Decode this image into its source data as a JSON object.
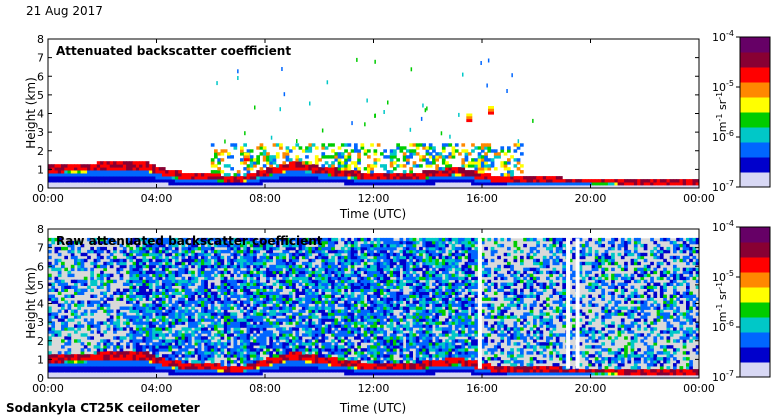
{
  "header": {
    "date": "21 Aug 2017"
  },
  "footer": {
    "instrument": "Sodankyla CT25K ceilometer"
  },
  "colors": {
    "cmap": [
      "#d8d8f4",
      "#0000cc",
      "#0066ff",
      "#00c8c8",
      "#00cc00",
      "#ffff00",
      "#ff8800",
      "#ff0000",
      "#880033",
      "#660066"
    ],
    "raw_background": "#d9d9d9"
  },
  "chart_data": [
    {
      "type": "heatmap",
      "title": "Attenuated backscatter coefficient",
      "xlabel": "Time (UTC)",
      "ylabel": "Height (km)",
      "xticks": [
        "00:00",
        "04:00",
        "08:00",
        "12:00",
        "16:00",
        "20:00",
        "00:00"
      ],
      "xlim": [
        0,
        24
      ],
      "ylim": [
        0,
        8
      ],
      "yticks": [
        0,
        1,
        2,
        3,
        4,
        5,
        6,
        7,
        8
      ],
      "colorbar": {
        "scale": "log",
        "range": [
          1e-07,
          0.0001
        ],
        "tick_labels": [
          "10-4",
          "10-5",
          "10-6",
          "10-7"
        ],
        "label": "m-1 sr-1"
      },
      "features": {
        "boundary_layer_top_km": [
          [
            0,
            0.9
          ],
          [
            2,
            1.05
          ],
          [
            3.5,
            1.1
          ],
          [
            4.5,
            0.6
          ],
          [
            7,
            0.3
          ],
          [
            9,
            1.1
          ],
          [
            11,
            0.6
          ],
          [
            13,
            0.4
          ],
          [
            15,
            0.8
          ],
          [
            16.5,
            0.3
          ],
          [
            20,
            0.2
          ],
          [
            24,
            0.15
          ]
        ],
        "elevated_layers": [
          {
            "time_h": 15.5,
            "height_km": 3.8
          },
          {
            "time_h": 16.3,
            "height_km": 4.2
          },
          {
            "time_h": 7.3,
            "height_km": 1.7
          }
        ]
      }
    },
    {
      "type": "heatmap",
      "title": "Raw attenuated backscatter coefficient",
      "xlabel": "Time (UTC)",
      "ylabel": "Height (km)",
      "xticks": [
        "00:00",
        "04:00",
        "08:00",
        "12:00",
        "16:00",
        "20:00",
        "00:00"
      ],
      "xlim": [
        0,
        24
      ],
      "ylim": [
        0,
        8
      ],
      "yticks": [
        0,
        1,
        2,
        3,
        4,
        5,
        6,
        7,
        8
      ],
      "colorbar": {
        "scale": "log",
        "range": [
          1e-07,
          0.0001
        ],
        "tick_labels": [
          "10-4",
          "10-5",
          "10-6",
          "10-7"
        ],
        "label": "m-1 sr-1"
      },
      "features": {
        "data_gaps_h": [
          15.85,
          19.1,
          19.45
        ],
        "max_height_km": 7.5
      }
    }
  ]
}
